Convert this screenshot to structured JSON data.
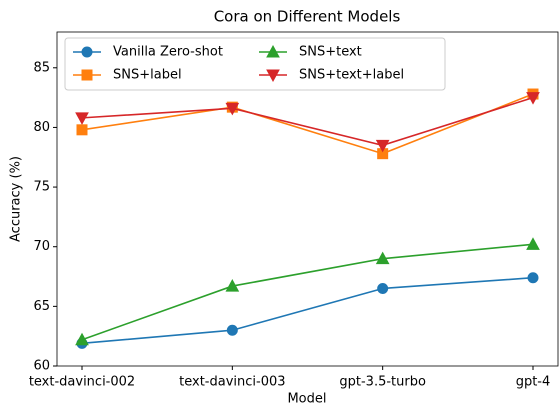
{
  "chart_data": {
    "type": "line",
    "title": "Cora on Different Models",
    "xlabel": "Model",
    "ylabel": "Accuracy (%)",
    "categories": [
      "text-davinci-002",
      "text-davinci-003",
      "gpt-3.5-turbo",
      "gpt-4"
    ],
    "series": [
      {
        "name": "Vanilla Zero-shot",
        "color": "#1f77b4",
        "marker": "circle",
        "values": [
          61.9,
          63.0,
          66.5,
          67.4
        ]
      },
      {
        "name": "SNS+label",
        "color": "#ff7f0e",
        "marker": "square",
        "values": [
          79.8,
          81.7,
          77.8,
          82.8
        ]
      },
      {
        "name": "SNS+text",
        "color": "#2ca02c",
        "marker": "triangle-up",
        "values": [
          62.2,
          66.7,
          69.0,
          70.2
        ]
      },
      {
        "name": "SNS+text+label",
        "color": "#d62728",
        "marker": "triangle-down",
        "values": [
          80.8,
          81.6,
          78.5,
          82.5
        ]
      }
    ],
    "ylim": [
      60,
      88
    ],
    "yticks": [
      60,
      65,
      70,
      75,
      80,
      85
    ],
    "legend": "upper left",
    "legend_columns": 2
  }
}
